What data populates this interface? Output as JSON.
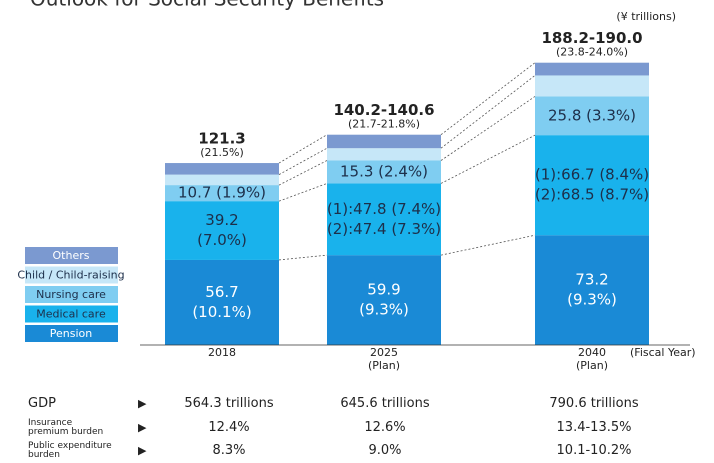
{
  "chart_data": {
    "type": "bar",
    "stacked": true,
    "title": "Outlook for Social Security Benefits",
    "unit": "(¥ trillions)",
    "x_label": "(Fiscal Year)",
    "categories": [
      "2018",
      "2025",
      "2040"
    ],
    "category_notes": [
      null,
      "(Plan)",
      "(Plan)"
    ],
    "totals": [
      "121.3",
      "140.2-140.6",
      "188.2-190.0"
    ],
    "total_shares": [
      "(21.5%)",
      "(21.7-21.8%)",
      "(23.8-24.0%)"
    ],
    "ylim": [
      0,
      200
    ],
    "series": [
      {
        "name": "Pension",
        "color": "#1a8ad6",
        "label_color": "#ffffff",
        "values": [
          56.7,
          59.9,
          73.2
        ],
        "value_labels": [
          [
            "56.7",
            "(10.1%)"
          ],
          [
            "59.9",
            "(9.3%)"
          ],
          [
            "73.2",
            "(9.3%)"
          ]
        ]
      },
      {
        "name": "Medical care",
        "color": "#19b2ec",
        "label_color": "#1d2f4a",
        "values": [
          39.2,
          47.8,
          66.7
        ],
        "value_labels": [
          [
            "39.2",
            "(7.0%)"
          ],
          [
            "(1):47.8 (7.4%)",
            "(2):47.4 (7.3%)"
          ],
          [
            "(1):66.7 (8.4%)",
            "(2):68.5 (8.7%)"
          ]
        ]
      },
      {
        "name": "Nursing care",
        "color": "#7fcdf1",
        "label_color": "#1d2f4a",
        "values": [
          10.7,
          15.3,
          25.8
        ],
        "value_labels": [
          [
            "10.7 (1.9%)"
          ],
          [
            "15.3 (2.4%)"
          ],
          [
            "25.8 (3.3%)"
          ]
        ]
      },
      {
        "name": "Child / Child-raising",
        "color": "#c6e7f8",
        "label_color": "#1d2f4a",
        "values": [
          7.0,
          8.2,
          14.0
        ],
        "value_labels": [
          null,
          null,
          null
        ]
      },
      {
        "name": "Others",
        "color": "#7b99d0",
        "label_color": "#ffffff",
        "values": [
          7.7,
          9.0,
          8.5
        ],
        "value_labels": [
          null,
          null,
          null
        ]
      }
    ]
  },
  "table": {
    "rows": [
      {
        "label": "GDP",
        "values": [
          "564.3 trillions",
          "645.6 trillions",
          "790.6 trillions"
        ]
      },
      {
        "label": "Insurance premium burden",
        "values": [
          "12.4%",
          "12.6%",
          "13.4-13.5%"
        ]
      },
      {
        "label": "Public expenditure burden",
        "values": [
          "8.3%",
          "9.0%",
          "10.1-10.2%"
        ]
      }
    ]
  }
}
